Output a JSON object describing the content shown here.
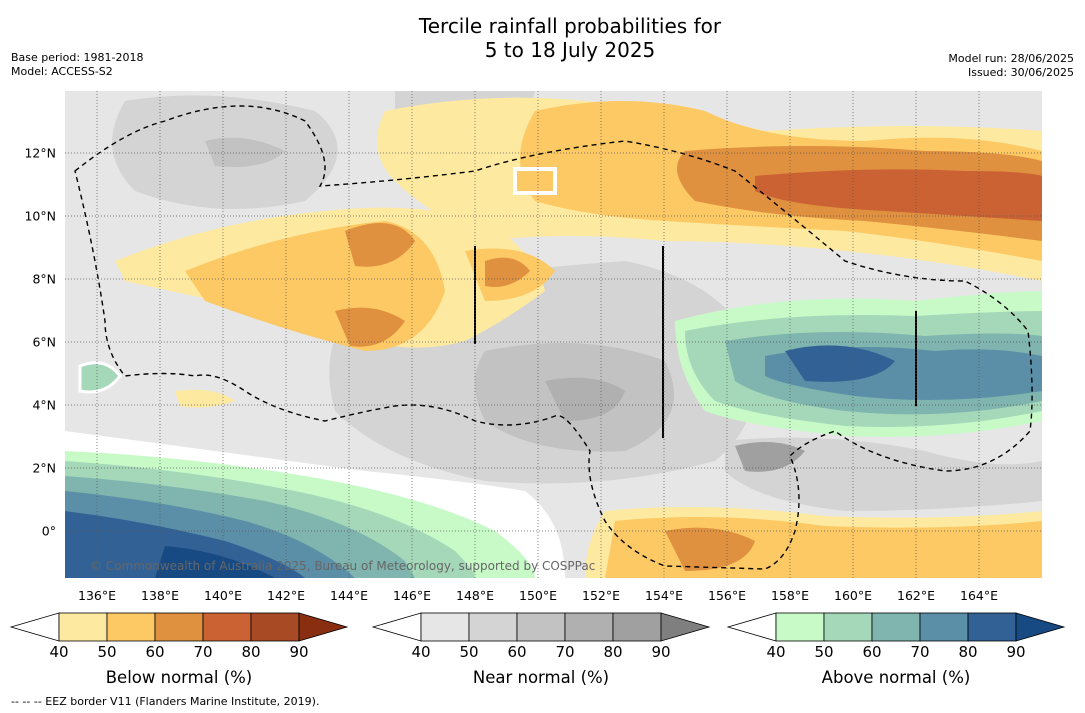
{
  "title": {
    "line1": "Tercile rainfall probabilities for",
    "line2": "5 to 18 July 2025"
  },
  "meta_left": {
    "base_period": "Base period: 1981-2018",
    "model": "Model: ACCESS-S2"
  },
  "meta_right": {
    "model_run": "Model run: 28/06/2025",
    "issued": "Issued: 30/06/2025"
  },
  "map": {
    "lon_labels": [
      "136°E",
      "138°E",
      "140°E",
      "142°E",
      "144°E",
      "146°E",
      "148°E",
      "150°E",
      "152°E",
      "154°E",
      "156°E",
      "158°E",
      "160°E",
      "162°E",
      "164°E"
    ],
    "lat_labels": [
      "12°N",
      "10°N",
      "8°N",
      "6°N",
      "4°N",
      "2°N",
      "0°"
    ],
    "lon_range": [
      135,
      166
    ],
    "lat_range": [
      -1.5,
      14
    ],
    "grid": "dotted",
    "copyright": "© Commonwealth of Australia 2025, Bureau of Meteorology, supported by COSPPac"
  },
  "colorbars": [
    {
      "label": "Below normal (%)",
      "ticks": [
        "40",
        "50",
        "60",
        "70",
        "80",
        "90"
      ],
      "colors": [
        "#ffffff",
        "#fdeaa0",
        "#fcc964",
        "#e0913f",
        "#cb6233",
        "#a84b24",
        "#8a2e12"
      ]
    },
    {
      "label": "Near normal (%)",
      "ticks": [
        "40",
        "50",
        "60",
        "70",
        "80",
        "90"
      ],
      "colors": [
        "#ffffff",
        "#e6e6e6",
        "#d4d4d4",
        "#c2c2c2",
        "#b0b0b0",
        "#a0a0a0",
        "#7f7f7f"
      ]
    },
    {
      "label": "Above normal (%)",
      "ticks": [
        "40",
        "50",
        "60",
        "70",
        "80",
        "90"
      ],
      "colors": [
        "#ffffff",
        "#c8fac8",
        "#a5d8b9",
        "#7fb5ae",
        "#5b8fa8",
        "#326295",
        "#174a82"
      ]
    }
  ],
  "footnote": "--  --  -- EEZ border V11 (Flanders Marine Institute, 2019)."
}
